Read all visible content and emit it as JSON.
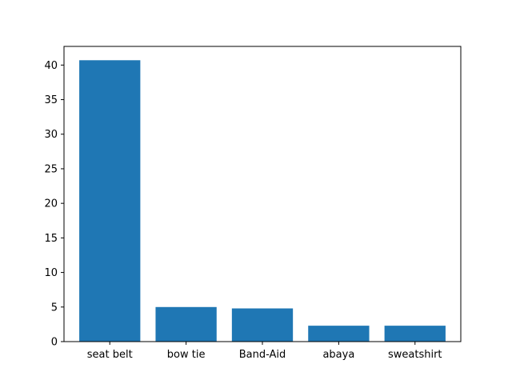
{
  "chart_data": {
    "type": "bar",
    "title": "",
    "xlabel": "",
    "ylabel": "",
    "categories": [
      "seat belt",
      "bow tie",
      "Band-Aid",
      "abaya",
      "sweatshirt"
    ],
    "values": [
      40.7,
      5.0,
      4.8,
      2.3,
      2.3
    ],
    "ylim": [
      0,
      42.7
    ],
    "yticks": [
      0,
      5,
      10,
      15,
      20,
      25,
      30,
      35,
      40
    ],
    "ytick_labels": [
      "0",
      "5",
      "10",
      "15",
      "20",
      "25",
      "30",
      "35",
      "40"
    ],
    "grid": false,
    "legend": "none",
    "bar_color": "#1f77b4"
  }
}
